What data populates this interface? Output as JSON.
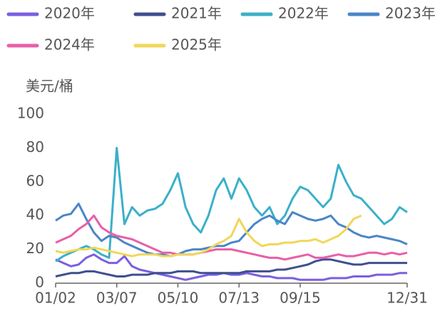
{
  "chart_data": {
    "type": "line",
    "y_label": "美元/桶",
    "categories": [
      "01/02",
      null,
      null,
      null,
      null,
      null,
      null,
      null,
      "03/07",
      null,
      null,
      null,
      null,
      null,
      null,
      null,
      "05/10",
      null,
      null,
      null,
      null,
      null,
      null,
      null,
      "07/13",
      null,
      null,
      null,
      null,
      null,
      null,
      null,
      "09/15",
      null,
      null,
      null,
      null,
      null,
      null,
      null,
      null,
      null,
      null,
      null,
      null,
      null,
      "12/31"
    ],
    "ylim": [
      0,
      100
    ],
    "yticks": [
      0,
      20,
      40,
      60,
      80,
      100
    ],
    "grid": false,
    "series": [
      {
        "name": "2020年",
        "color": "#7b5fe0",
        "values": [
          14,
          12,
          10,
          11,
          15,
          17,
          14,
          12,
          12,
          16,
          10,
          8,
          7,
          6,
          5,
          4,
          3,
          2,
          3,
          4,
          5,
          5,
          6,
          5,
          5,
          6,
          5,
          4,
          4,
          3,
          3,
          3,
          2,
          2,
          2,
          2,
          3,
          3,
          3,
          4,
          4,
          4,
          5,
          5,
          5,
          6,
          6
        ]
      },
      {
        "name": "2021年",
        "color": "#3f4f8f",
        "values": [
          4,
          5,
          6,
          6,
          7,
          7,
          6,
          5,
          4,
          4,
          5,
          5,
          5,
          6,
          6,
          6,
          7,
          7,
          7,
          6,
          6,
          6,
          6,
          6,
          6,
          7,
          7,
          7,
          7,
          8,
          8,
          9,
          10,
          11,
          13,
          14,
          14,
          13,
          12,
          11,
          11,
          12,
          12,
          12,
          12,
          12,
          12
        ]
      },
      {
        "name": "2022年",
        "color": "#3bb0c9",
        "values": [
          13,
          16,
          18,
          20,
          22,
          20,
          17,
          15,
          80,
          35,
          45,
          40,
          43,
          44,
          47,
          55,
          65,
          45,
          35,
          30,
          40,
          55,
          62,
          50,
          62,
          55,
          45,
          40,
          45,
          35,
          40,
          50,
          57,
          55,
          50,
          45,
          50,
          70,
          60,
          52,
          50,
          45,
          40,
          35,
          38,
          45,
          42
        ]
      },
      {
        "name": "2023年",
        "color": "#4a86c8",
        "values": [
          37,
          40,
          41,
          47,
          38,
          30,
          25,
          28,
          27,
          24,
          22,
          20,
          18,
          17,
          17,
          16,
          17,
          19,
          20,
          20,
          21,
          22,
          22,
          24,
          25,
          30,
          35,
          38,
          40,
          37,
          35,
          42,
          40,
          38,
          37,
          38,
          40,
          35,
          33,
          30,
          28,
          27,
          28,
          27,
          26,
          25,
          23
        ]
      },
      {
        "name": "2024年",
        "color": "#e85fa8",
        "values": [
          24,
          26,
          28,
          32,
          35,
          40,
          33,
          30,
          28,
          27,
          26,
          24,
          22,
          20,
          18,
          18,
          17,
          17,
          17,
          18,
          19,
          20,
          20,
          20,
          19,
          18,
          17,
          16,
          15,
          15,
          14,
          15,
          16,
          17,
          15,
          15,
          16,
          17,
          16,
          16,
          17,
          18,
          18,
          17,
          18,
          17,
          18
        ]
      },
      {
        "name": "2025年",
        "color": "#f0d75a",
        "values": [
          19,
          18,
          19,
          20,
          20,
          21,
          20,
          19,
          18,
          17,
          16,
          17,
          17,
          17,
          16,
          16,
          17,
          17,
          17,
          18,
          20,
          23,
          25,
          28,
          38,
          30,
          25,
          22,
          23,
          23,
          24,
          24,
          25,
          25,
          26,
          24,
          26,
          28,
          32,
          38,
          40,
          null,
          null,
          null,
          null,
          null,
          null
        ]
      }
    ]
  }
}
